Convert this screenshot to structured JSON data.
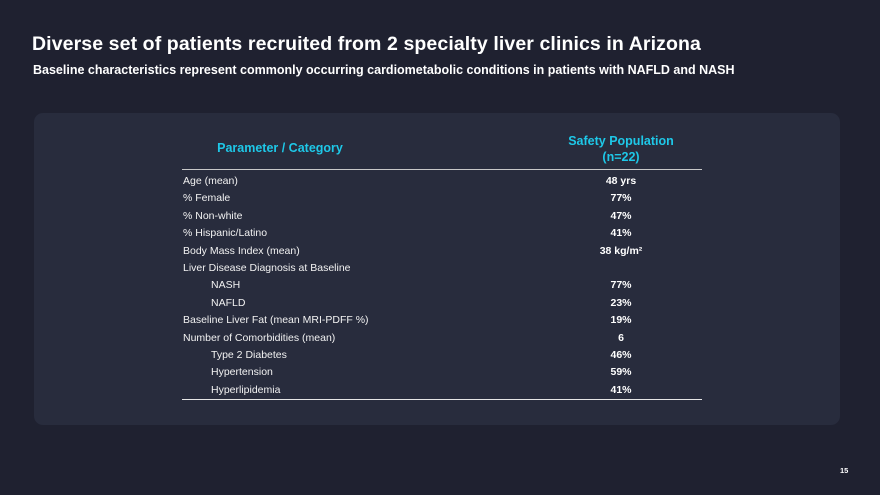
{
  "slide": {
    "title": "Diverse set of patients recruited from 2 specialty liver clinics in Arizona",
    "subtitle": "Baseline characteristics represent commonly occurring cardiometabolic conditions in patients with NAFLD and NASH",
    "page_number": "15"
  },
  "table": {
    "header_param": "Parameter / Category",
    "header_pop_line1": "Safety Population",
    "header_pop_line2": "(n=22)",
    "rows": [
      {
        "label": "Age (mean)",
        "value": "48 yrs"
      },
      {
        "label": "% Female",
        "value": "77%"
      },
      {
        "label": "% Non-white",
        "value": "47%"
      },
      {
        "label": "% Hispanic/Latino",
        "value": "41%"
      },
      {
        "label": "Body Mass Index (mean)",
        "value": "38 kg/m²"
      },
      {
        "label": "Liver Disease Diagnosis at Baseline",
        "value": ""
      },
      {
        "label": "NASH",
        "value": "77%"
      },
      {
        "label": "NAFLD",
        "value": "23%"
      },
      {
        "label": "Baseline Liver Fat (mean MRI-PDFF %)",
        "value": "19%"
      },
      {
        "label": "Number of Comorbidities (mean)",
        "value": "6"
      },
      {
        "label": "Type 2 Diabetes",
        "value": "46%"
      },
      {
        "label": "Hypertension",
        "value": "59%"
      },
      {
        "label": "Hyperlipidemia",
        "value": "41%"
      }
    ]
  }
}
